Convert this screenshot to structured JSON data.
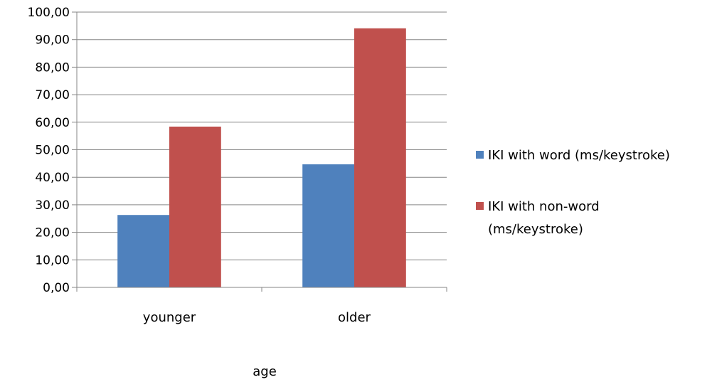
{
  "chart_data": {
    "type": "bar",
    "categories": [
      "younger",
      "older"
    ],
    "series": [
      {
        "name": "IKI with word (ms/keystroke)",
        "values": [
          26.3,
          44.7
        ],
        "color": "#4F81BD"
      },
      {
        "name": "IKI with non-word (ms/keystroke)",
        "legend_lines": [
          "IKI with non-word",
          "(ms/keystroke)"
        ],
        "values": [
          58.4,
          94.1
        ],
        "color": "#C0504D"
      }
    ],
    "y_ticks": [
      "0,00",
      "10,00",
      "20,00",
      "30,00",
      "40,00",
      "50,00",
      "60,00",
      "70,00",
      "80,00",
      "90,00",
      "100,00"
    ],
    "xlabel": "age",
    "ylabel": "",
    "ylim": [
      0,
      100
    ],
    "grid": true,
    "legend_position": "right"
  }
}
